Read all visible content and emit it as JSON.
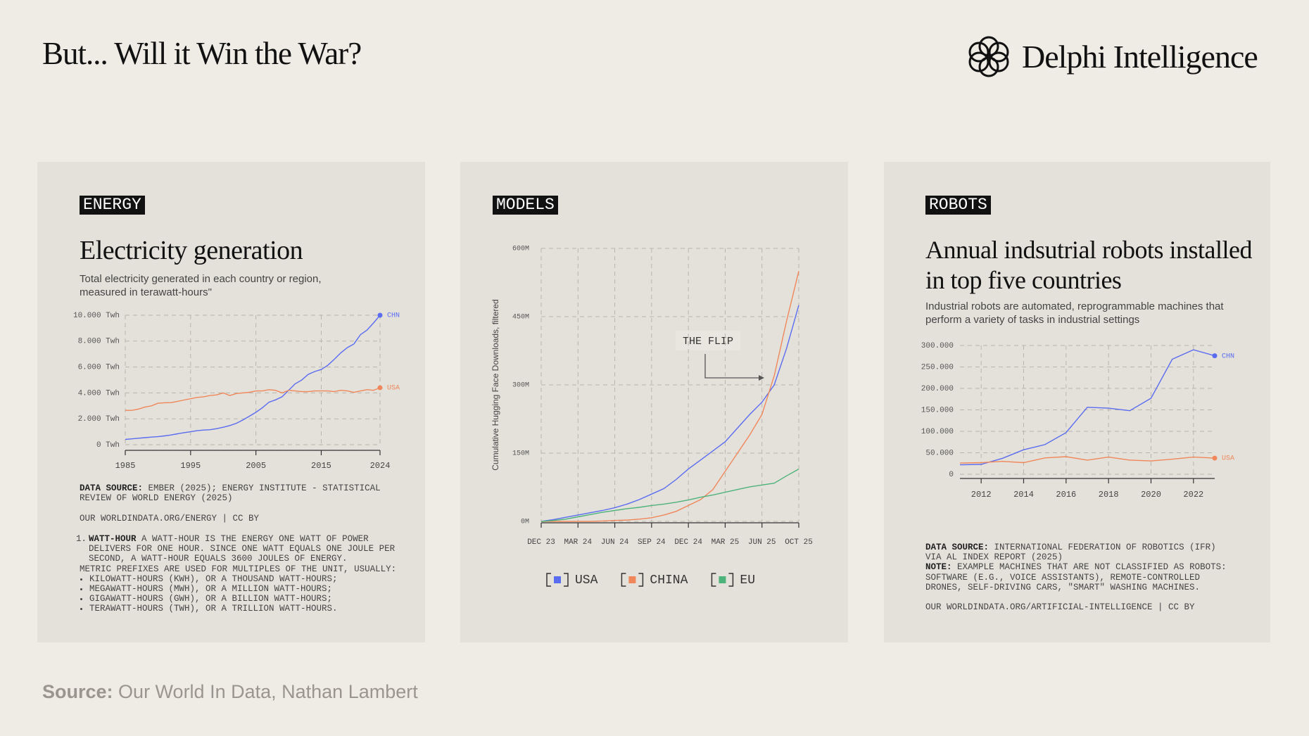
{
  "header": {
    "title": "But... Will it Win the War?",
    "brand": "Delphi Intelligence"
  },
  "footer": {
    "source_label": "Source:",
    "source": "Our World In Data, Nathan Lambert"
  },
  "chart_data": [
    {
      "type": "line",
      "tag": "ENERGY",
      "title": "Electricity generation",
      "subtitle": "Total electricity generated in each country or region, measured in terawatt-hours\"",
      "x": [
        1985,
        1986,
        1987,
        1988,
        1989,
        1990,
        1991,
        1992,
        1993,
        1994,
        1995,
        1996,
        1997,
        1998,
        1999,
        2000,
        2001,
        2002,
        2003,
        2004,
        2005,
        2006,
        2007,
        2008,
        2009,
        2010,
        2011,
        2012,
        2013,
        2014,
        2015,
        2016,
        2017,
        2018,
        2019,
        2020,
        2021,
        2022,
        2023,
        2024
      ],
      "xlim": [
        1985,
        2024
      ],
      "xticks": [
        1985,
        1995,
        2005,
        2015,
        2024
      ],
      "ylim": [
        0,
        10000
      ],
      "yticks": [
        {
          "value": 0,
          "label": "0 Twh"
        },
        {
          "value": 2000,
          "label": "2.000 Twh"
        },
        {
          "value": 4000,
          "label": "4.000 Twh"
        },
        {
          "value": 6000,
          "label": "6.000 Twh"
        },
        {
          "value": 8000,
          "label": "8.000 Twh"
        },
        {
          "value": 10000,
          "label": "10.000 Twh"
        }
      ],
      "grid": true,
      "end_labels": true,
      "series": [
        {
          "name": "CHN",
          "color": "#5a6cf0",
          "values": [
            410,
            450,
            500,
            545,
            585,
            620,
            680,
            750,
            840,
            930,
            1000,
            1080,
            1130,
            1160,
            1240,
            1350,
            1480,
            1650,
            1910,
            2200,
            2500,
            2860,
            3280,
            3460,
            3700,
            4200,
            4700,
            4990,
            5430,
            5650,
            5810,
            6130,
            6600,
            7100,
            7500,
            7780,
            8500,
            8850,
            9400,
            10000
          ]
        },
        {
          "name": "USA",
          "color": "#f0875a",
          "values": [
            2650,
            2650,
            2750,
            2900,
            3000,
            3200,
            3240,
            3250,
            3350,
            3450,
            3550,
            3650,
            3700,
            3800,
            3850,
            4000,
            3800,
            3950,
            4000,
            4050,
            4150,
            4150,
            4250,
            4200,
            4000,
            4200,
            4150,
            4100,
            4100,
            4150,
            4150,
            4150,
            4100,
            4200,
            4150,
            4050,
            4150,
            4250,
            4200,
            4400
          ]
        }
      ],
      "source_label": "DATA SOURCE:",
      "source": "EMBER (2025); ENERGY INSTITUTE - STATISTICAL REVIEW OF WORLD ENERGY (2025)",
      "url": "OUR WORLDINDATA.ORG/ENERGY | CC BY",
      "footnote": {
        "number": "1.",
        "term": "WATT-HOUR",
        "text": "A WATT-HOUR IS THE ENERGY ONE WATT OF POWER DELIVERS FOR ONE HOUR. SINCE ONE WATT EQUALS ONE JOULE PER SECOND, A WATT-HOUR EQUALS 3600 JOULES OF ENERGY.",
        "intro": "METRIC PREFIXES ARE USED FOR MULTIPLES OF THE UNIT, USUALLY:",
        "items": [
          "KILOWATT-HOURS (KWH), OR A THOUSAND WATT-HOURS;",
          "MEGAWATT-HOURS (MWH), OR A MILLION WATT-HOURS;",
          "GIGAWATT-HOURS (GWH), OR A BILLION WATT-HOURS;",
          "TERAWATT-HOURS (TWH), OR A TRILLION WATT-HOURS."
        ]
      }
    },
    {
      "type": "line",
      "tag": "MODELS",
      "y_label": "Cumulative Hugging Face Downloads, filtered",
      "categories": [
        "DEC 23",
        null,
        null,
        "MAR 24",
        null,
        null,
        "JUN 24",
        null,
        null,
        "SEP 24",
        null,
        null,
        "DEC 24",
        null,
        null,
        "MAR 25",
        null,
        null,
        "JUN 25",
        null,
        null,
        "OCT 25"
      ],
      "ylim": [
        0,
        600
      ],
      "yticks": [
        {
          "value": 0,
          "label": "0M"
        },
        {
          "value": 150,
          "label": "150M"
        },
        {
          "value": 300,
          "label": "300M"
        },
        {
          "value": 450,
          "label": "450M"
        },
        {
          "value": 600,
          "label": "600M"
        }
      ],
      "grid": true,
      "legend": "bottom",
      "annotation": "THE FLIP",
      "series": [
        {
          "name": "USA",
          "color": "#5a6cf0",
          "values": [
            0,
            4,
            9,
            14,
            19,
            24,
            30,
            38,
            48,
            60,
            72,
            92,
            115,
            135,
            155,
            175,
            205,
            235,
            262,
            300,
            380,
            475
          ]
        },
        {
          "name": "CHINA",
          "color": "#f0875a",
          "values": [
            0,
            0,
            0,
            0,
            0,
            1,
            2,
            3,
            5,
            8,
            14,
            22,
            35,
            48,
            70,
            110,
            150,
            190,
            235,
            320,
            440,
            550
          ]
        },
        {
          "name": "EU",
          "color": "#4db37a",
          "values": [
            0,
            2,
            5,
            10,
            15,
            20,
            24,
            28,
            31,
            35,
            38,
            42,
            47,
            53,
            58,
            64,
            70,
            76,
            80,
            84,
            100,
            115
          ]
        }
      ]
    },
    {
      "type": "line",
      "tag": "ROBOTS",
      "title": "Annual indsutrial robots installed in top five countries",
      "subtitle": "Industrial robots are automated, reprogrammable machines that perform a variety of tasks in industrial settings",
      "x": [
        2011,
        2012,
        2013,
        2014,
        2015,
        2016,
        2017,
        2018,
        2019,
        2020,
        2021,
        2022,
        2023
      ],
      "xlim": [
        2011,
        2023
      ],
      "xticks": [
        2012,
        2014,
        2016,
        2018,
        2020,
        2022
      ],
      "ylim": [
        0,
        300000
      ],
      "yticks": [
        0,
        {
          "value": 50000,
          "label": "50.000"
        },
        {
          "value": 100000,
          "label": "100.000"
        },
        {
          "value": 150000,
          "label": "150.000"
        },
        {
          "value": 200000,
          "label": "200.000"
        },
        {
          "value": 250000,
          "label": "250.000"
        },
        {
          "value": 300000,
          "label": "300.000"
        }
      ],
      "grid": true,
      "end_labels": true,
      "series": [
        {
          "name": "CHN",
          "color": "#5a6cf0",
          "values": [
            22000,
            23000,
            37000,
            57000,
            69000,
            97000,
            156000,
            154000,
            148000,
            177000,
            268000,
            290000,
            276000
          ]
        },
        {
          "name": "USA",
          "color": "#f0875a",
          "values": [
            26000,
            27000,
            30000,
            27000,
            38000,
            41000,
            33000,
            40000,
            33000,
            31000,
            35000,
            40000,
            37600
          ]
        }
      ],
      "source_label": "DATA SOURCE:",
      "source": "INTERNATIONAL FEDERATION OF ROBOTICS (IFR) VIA AL INDEX REPORT (2025)",
      "note_label": "NOTE:",
      "note": "EXAMPLE MACHINES THAT ARE NOT CLASSIFIED AS ROBOTS: SOFTWARE (E.G., VOICE ASSISTANTS), REMOTE-CONTROLLED DRONES, SELF-DRIVING CARS, \"SMART\" WASHING MACHINES.",
      "url": "OUR WORLDINDATA.ORG/ARTIFICIAL-INTELLIGENCE | CC BY"
    }
  ]
}
